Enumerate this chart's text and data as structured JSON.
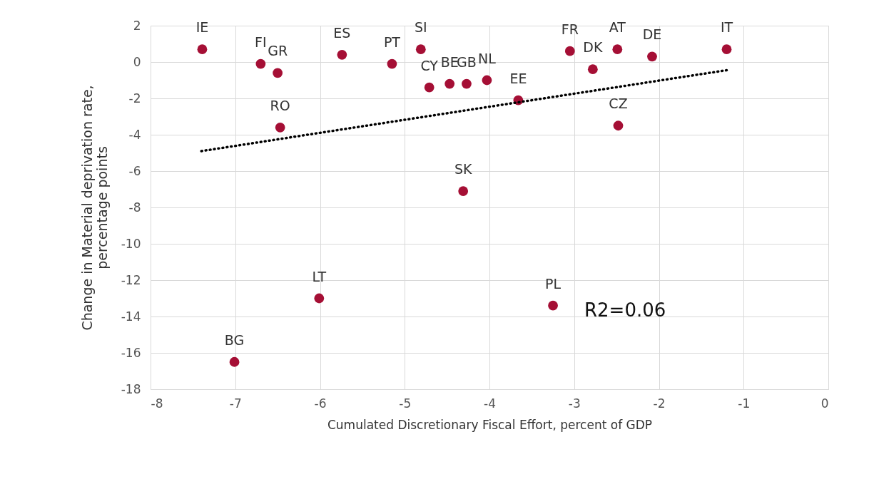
{
  "chart_data": {
    "type": "scatter",
    "xlabel": "Cumulated Discretionary Fiscal Effort, percent of GDP",
    "ylabel": "Change in Material deprivation rate, percentage points",
    "xlim": [
      -8,
      0
    ],
    "xticks": [
      -8,
      -7,
      -6,
      -5,
      -4,
      -3,
      -2,
      -1,
      0
    ],
    "ylim": [
      -18,
      2
    ],
    "yticks": [
      -18,
      -16,
      -14,
      -12,
      -10,
      -8,
      -6,
      -4,
      -2,
      0,
      2
    ],
    "grid": true,
    "annotations": [
      "R2=0.06"
    ],
    "series": [
      {
        "type": "scatter",
        "color": "#a50f35",
        "marker": "circle",
        "x": [
          -7.39,
          -6.7,
          -6.5,
          -5.74,
          -5.15,
          -4.81,
          -4.71,
          -4.47,
          -4.27,
          -4.03,
          -3.66,
          -3.05,
          -2.78,
          -2.49,
          -2.08,
          -1.2,
          -6.47,
          -2.48,
          -4.31,
          -6.01,
          -3.25,
          -7.01
        ],
        "values": [
          0.7,
          -0.1,
          -0.6,
          0.4,
          -0.1,
          0.7,
          -1.4,
          -1.2,
          -1.2,
          -1.0,
          -2.1,
          0.6,
          -0.4,
          0.7,
          0.3,
          0.7,
          -3.6,
          -3.5,
          -7.1,
          -13.0,
          -13.4,
          -16.5
        ],
        "value_labels": [
          "IE",
          "FI",
          "GR",
          "ES",
          "PT",
          "SI",
          "CY",
          "BE",
          "GB",
          "NL",
          "EE",
          "FR",
          "DK",
          "AT",
          "DE",
          "IT",
          "RO",
          "CZ",
          "SK",
          "LT",
          "PL",
          "BG"
        ]
      },
      {
        "type": "line",
        "color": "#000000",
        "line_style": "dotted",
        "x": [
          -7.4,
          -1.2
        ],
        "values": [
          -4.9,
          -0.45
        ]
      }
    ]
  }
}
